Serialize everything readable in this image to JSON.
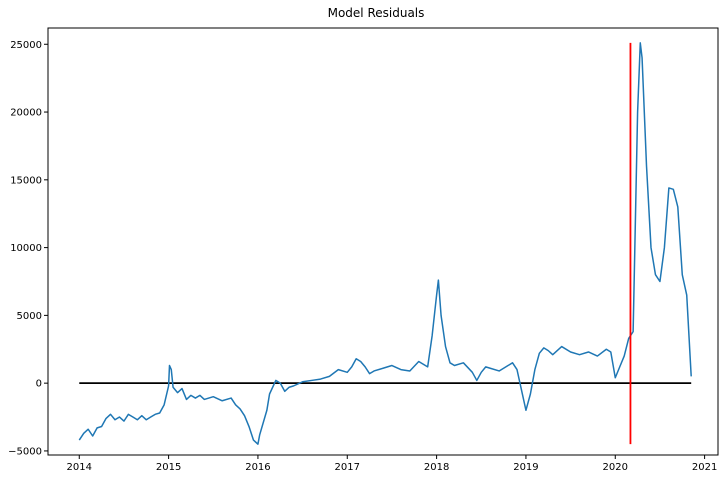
{
  "chart_data": {
    "type": "line",
    "title": "Model Residuals",
    "xlabel": "",
    "ylabel": "",
    "xlim": [
      2013.65,
      2021.15
    ],
    "ylim": [
      -5300,
      26200
    ],
    "x_ticks": [
      2014,
      2015,
      2016,
      2017,
      2018,
      2019,
      2020,
      2021
    ],
    "x_tick_labels": [
      "2014",
      "2015",
      "2016",
      "2017",
      "2018",
      "2019",
      "2020",
      "2021"
    ],
    "y_ticks": [
      -5000,
      0,
      5000,
      10000,
      15000,
      20000,
      25000
    ],
    "y_tick_labels": [
      "−5000",
      "0",
      "5000",
      "10000",
      "15000",
      "20000",
      "25000"
    ],
    "grid": false,
    "series": [
      {
        "color": "#1f77b4",
        "x": [
          2014.0,
          2014.05,
          2014.1,
          2014.15,
          2014.2,
          2014.25,
          2014.3,
          2014.35,
          2014.4,
          2014.45,
          2014.5,
          2014.55,
          2014.6,
          2014.65,
          2014.7,
          2014.75,
          2014.8,
          2014.85,
          2014.9,
          2014.95,
          2015.0,
          2015.01,
          2015.03,
          2015.05,
          2015.1,
          2015.15,
          2015.2,
          2015.25,
          2015.3,
          2015.35,
          2015.4,
          2015.5,
          2015.6,
          2015.7,
          2015.75,
          2015.8,
          2015.85,
          2015.9,
          2015.95,
          2016.0,
          2016.02,
          2016.1,
          2016.13,
          2016.2,
          2016.25,
          2016.3,
          2016.35,
          2016.4,
          2016.5,
          2016.6,
          2016.7,
          2016.8,
          2016.9,
          2017.0,
          2017.05,
          2017.1,
          2017.15,
          2017.2,
          2017.25,
          2017.3,
          2017.4,
          2017.5,
          2017.6,
          2017.7,
          2017.8,
          2017.9,
          2017.95,
          2018.0,
          2018.02,
          2018.05,
          2018.1,
          2018.15,
          2018.2,
          2018.3,
          2018.4,
          2018.45,
          2018.5,
          2018.55,
          2018.6,
          2018.7,
          2018.8,
          2018.85,
          2018.9,
          2018.95,
          2019.0,
          2019.05,
          2019.1,
          2019.15,
          2019.2,
          2019.25,
          2019.3,
          2019.4,
          2019.5,
          2019.6,
          2019.7,
          2019.8,
          2019.9,
          2019.95,
          2020.0,
          2020.05,
          2020.1,
          2020.15,
          2020.2,
          2020.25,
          2020.28,
          2020.3,
          2020.35,
          2020.4,
          2020.45,
          2020.5,
          2020.55,
          2020.6,
          2020.65,
          2020.7,
          2020.75,
          2020.8,
          2020.85
        ],
        "y": [
          -4200,
          -3700,
          -3400,
          -3900,
          -3300,
          -3200,
          -2600,
          -2300,
          -2700,
          -2500,
          -2800,
          -2300,
          -2500,
          -2700,
          -2400,
          -2700,
          -2500,
          -2300,
          -2200,
          -1600,
          -200,
          1300,
          1000,
          -300,
          -700,
          -400,
          -1200,
          -900,
          -1100,
          -900,
          -1200,
          -1000,
          -1300,
          -1100,
          -1600,
          -1900,
          -2400,
          -3200,
          -4200,
          -4500,
          -3800,
          -2000,
          -800,
          200,
          0,
          -600,
          -300,
          -200,
          100,
          200,
          300,
          500,
          1000,
          800,
          1200,
          1800,
          1600,
          1200,
          700,
          900,
          1100,
          1300,
          1000,
          900,
          1600,
          1200,
          3500,
          6500,
          7600,
          5000,
          2700,
          1500,
          1300,
          1500,
          800,
          200,
          800,
          1200,
          1100,
          900,
          1300,
          1500,
          1000,
          -500,
          -2000,
          -800,
          1000,
          2200,
          2600,
          2400,
          2100,
          2700,
          2300,
          2100,
          2300,
          2000,
          2500,
          2300,
          400,
          1200,
          2000,
          3300,
          3800,
          20000,
          25100,
          24000,
          16000,
          10000,
          8000,
          7500,
          10000,
          14400,
          14300,
          13000,
          8000,
          6500,
          500
        ]
      }
    ],
    "vertical_line": {
      "x": 2020.17,
      "y_from": -4500,
      "y_to": 25100,
      "color": "#ff0000"
    },
    "horizontal_line": {
      "y": 0,
      "x_from": 2014.0,
      "x_to": 2020.85,
      "color": "#000000"
    }
  }
}
